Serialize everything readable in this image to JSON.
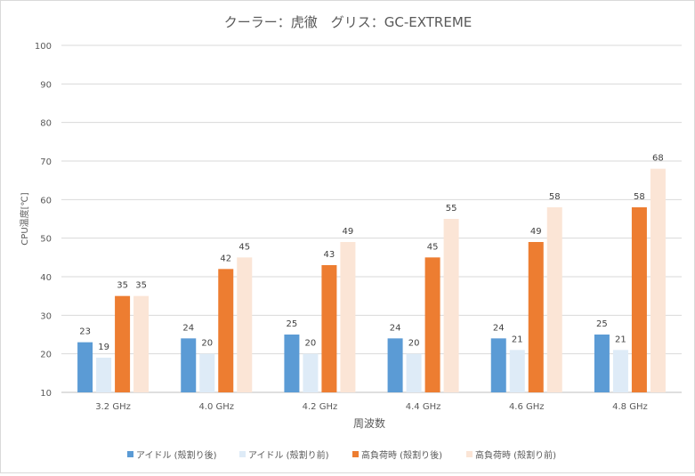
{
  "chart_data": {
    "type": "bar",
    "title": "クーラー：虎徹　グリス：GC-EXTREME",
    "xlabel": "周波数",
    "ylabel": "CPU温度[℃]",
    "ylim": [
      10,
      100
    ],
    "ytick_step": 10,
    "grid": true,
    "legend_position": "bottom",
    "categories": [
      "3.2 GHz",
      "4.0 GHz",
      "4.2 GHz",
      "4.4 GHz",
      "4.6 GHz",
      "4.8 GHz"
    ],
    "series": [
      {
        "name": "アイドル (殻割り後)",
        "color": "#5b9bd5",
        "values": [
          23,
          24,
          25,
          24,
          24,
          25
        ]
      },
      {
        "name": "アイドル (殻割り前)",
        "color": "#deebf7",
        "values": [
          19,
          20,
          20,
          20,
          21,
          21
        ]
      },
      {
        "name": "高負荷時 (殻割り後)",
        "color": "#ed7d31",
        "values": [
          35,
          42,
          43,
          45,
          49,
          58
        ]
      },
      {
        "name": "高負荷時 (殻割り前)",
        "color": "#fbe5d6",
        "values": [
          35,
          45,
          49,
          55,
          58,
          68
        ]
      }
    ]
  }
}
